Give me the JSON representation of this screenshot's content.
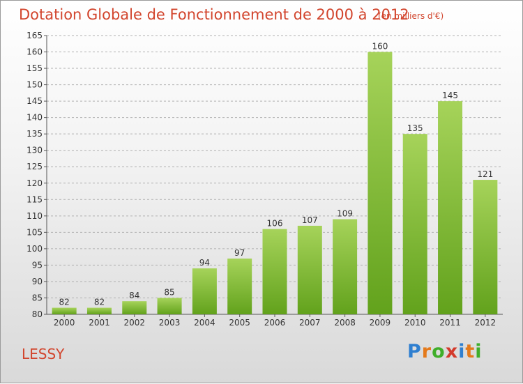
{
  "title": "Dotation Globale de Fonctionnement de 2000 à 2012",
  "units": "(en milliers d'€)",
  "town": "LESSY",
  "logo": {
    "letters": [
      "P",
      "r",
      "o",
      "x",
      "i",
      "t",
      "i"
    ],
    "colors": [
      "#2f7fd0",
      "#e47a1c",
      "#3fae2a",
      "#d33a2c",
      "#2f7fd0",
      "#e47a1c",
      "#3fae2a"
    ]
  },
  "colors": {
    "title": "#d2452d",
    "bar_light": "#a6d35a",
    "bar_dark": "#62a21c",
    "grid": "#b0b0b0"
  },
  "chart_data": {
    "type": "bar",
    "categories": [
      "2000",
      "2001",
      "2002",
      "2003",
      "2004",
      "2005",
      "2006",
      "2007",
      "2008",
      "2009",
      "2010",
      "2011",
      "2012"
    ],
    "values": [
      82,
      82,
      84,
      85,
      94,
      97,
      106,
      107,
      109,
      160,
      135,
      145,
      121
    ],
    "ylim": [
      80,
      165
    ],
    "yticks": [
      80,
      85,
      90,
      95,
      100,
      105,
      110,
      115,
      120,
      125,
      130,
      135,
      140,
      145,
      150,
      155,
      160,
      165
    ],
    "grid": true,
    "title": "Dotation Globale de Fonctionnement de 2000 à 2012",
    "xlabel": "",
    "ylabel": ""
  }
}
